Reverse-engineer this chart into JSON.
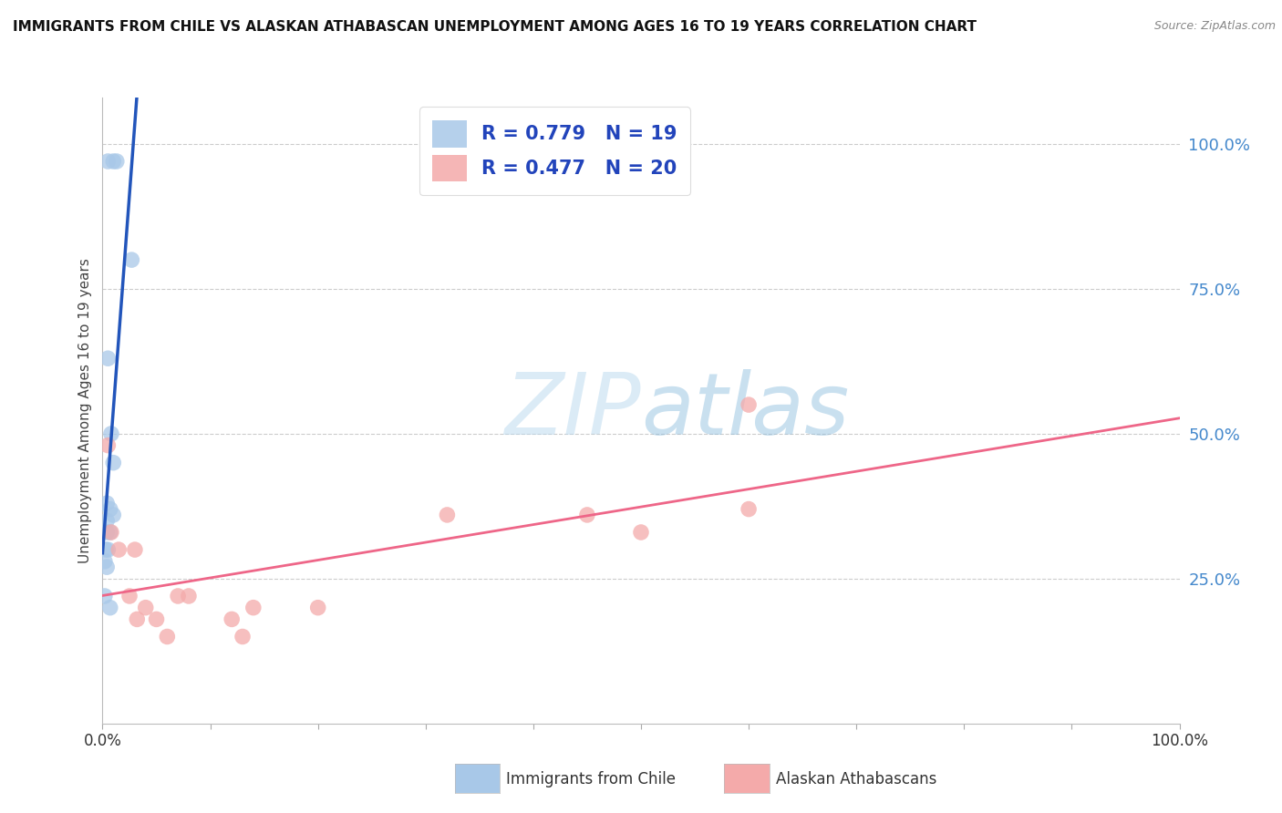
{
  "title": "IMMIGRANTS FROM CHILE VS ALASKAN ATHABASCAN UNEMPLOYMENT AMONG AGES 16 TO 19 YEARS CORRELATION CHART",
  "source": "Source: ZipAtlas.com",
  "ylabel": "Unemployment Among Ages 16 to 19 years",
  "ytick_values": [
    0.25,
    0.5,
    0.75,
    1.0
  ],
  "xlim": [
    0,
    1.0
  ],
  "ylim": [
    0,
    1.08
  ],
  "legend_r1": "R = 0.779",
  "legend_n1": "N = 19",
  "legend_r2": "R = 0.477",
  "legend_n2": "N = 20",
  "legend_label1": "Immigrants from Chile",
  "legend_label2": "Alaskan Athabascans",
  "color_blue": "#A8C8E8",
  "color_pink": "#F4AAAA",
  "color_line_blue": "#2255BB",
  "color_line_pink": "#EE6688",
  "watermark_zip": "ZIP",
  "watermark_atlas": "atlas",
  "blue_points": [
    [
      0.005,
      0.97
    ],
    [
      0.01,
      0.97
    ],
    [
      0.013,
      0.97
    ],
    [
      0.027,
      0.8
    ],
    [
      0.005,
      0.63
    ],
    [
      0.008,
      0.5
    ],
    [
      0.01,
      0.45
    ],
    [
      0.004,
      0.38
    ],
    [
      0.007,
      0.37
    ],
    [
      0.01,
      0.36
    ],
    [
      0.004,
      0.35
    ],
    [
      0.004,
      0.33
    ],
    [
      0.007,
      0.33
    ],
    [
      0.003,
      0.3
    ],
    [
      0.005,
      0.3
    ],
    [
      0.002,
      0.28
    ],
    [
      0.004,
      0.27
    ],
    [
      0.002,
      0.22
    ],
    [
      0.007,
      0.2
    ]
  ],
  "pink_points": [
    [
      0.005,
      0.48
    ],
    [
      0.008,
      0.33
    ],
    [
      0.015,
      0.3
    ],
    [
      0.025,
      0.22
    ],
    [
      0.03,
      0.3
    ],
    [
      0.032,
      0.18
    ],
    [
      0.04,
      0.2
    ],
    [
      0.05,
      0.18
    ],
    [
      0.06,
      0.15
    ],
    [
      0.07,
      0.22
    ],
    [
      0.08,
      0.22
    ],
    [
      0.12,
      0.18
    ],
    [
      0.13,
      0.15
    ],
    [
      0.14,
      0.2
    ],
    [
      0.2,
      0.2
    ],
    [
      0.32,
      0.36
    ],
    [
      0.45,
      0.36
    ],
    [
      0.5,
      0.33
    ],
    [
      0.6,
      0.55
    ],
    [
      0.6,
      0.37
    ]
  ]
}
